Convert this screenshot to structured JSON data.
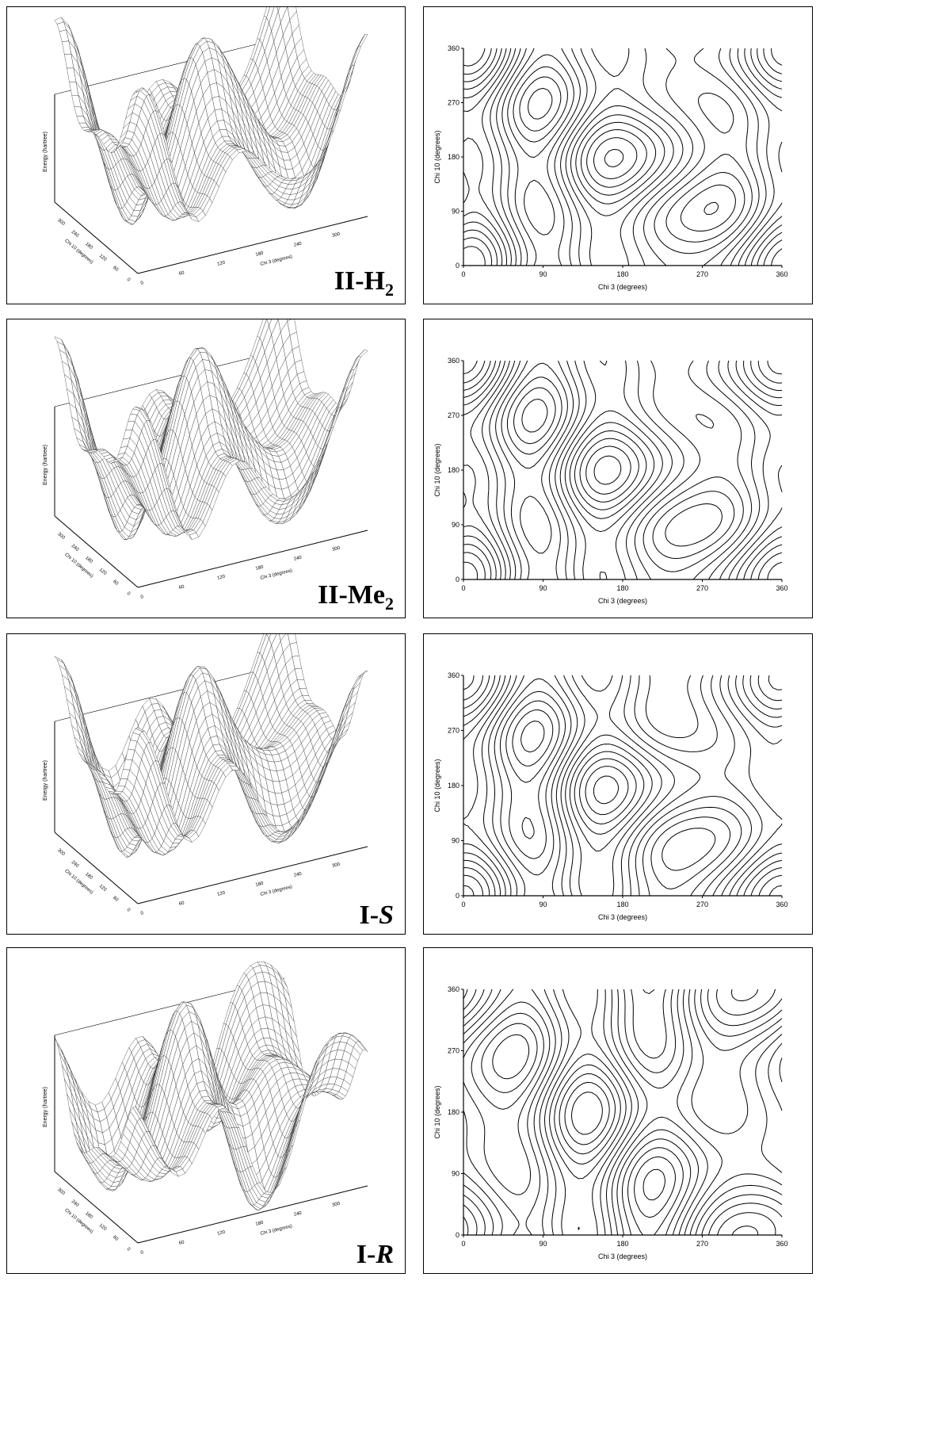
{
  "rows": [
    {
      "compound": {
        "base": "II-H",
        "sub": "2",
        "italic": ""
      },
      "surface": {
        "zlabel": "Energy (hartree)",
        "xlabel": "Chi 3 (degrees)",
        "ylabel": "Chi 10 (degrees)",
        "x_ticks": [
          "0",
          "60",
          "120",
          "180",
          "240",
          "300"
        ],
        "y_ticks": [
          "0",
          "60",
          "120",
          "180",
          "240",
          "300"
        ]
      },
      "contour": {
        "xlabel": "Chi 3 (degrees)",
        "ylabel": "Chi 10 (degrees)",
        "x_ticks": [
          "0",
          "90",
          "180",
          "270",
          "360"
        ],
        "y_ticks": [
          "0",
          "90",
          "180",
          "270",
          "360"
        ],
        "xlim": [
          0,
          360
        ],
        "ylim": [
          0,
          360
        ]
      }
    },
    {
      "compound": {
        "base": "II-Me",
        "sub": "2",
        "italic": ""
      },
      "surface": {
        "zlabel": "Energy (hartree)",
        "xlabel": "Chi 3 (degrees)",
        "ylabel": "Chi 10 (degrees)",
        "x_ticks": [
          "0",
          "60",
          "120",
          "180",
          "240",
          "300"
        ],
        "y_ticks": [
          "0",
          "60",
          "120",
          "180",
          "240",
          "300"
        ]
      },
      "contour": {
        "xlabel": "Chi 3 (degrees)",
        "ylabel": "Chi 10 (degrees)",
        "x_ticks": [
          "0",
          "90",
          "180",
          "270",
          "360"
        ],
        "y_ticks": [
          "0",
          "90",
          "180",
          "270",
          "360"
        ],
        "xlim": [
          0,
          360
        ],
        "ylim": [
          0,
          360
        ]
      }
    },
    {
      "compound": {
        "base": "I-",
        "sub": "",
        "italic": "S"
      },
      "surface": {
        "zlabel": "Energy (hartree)",
        "xlabel": "Chi 3 (degrees)",
        "ylabel": "Chi 10 (degrees)",
        "x_ticks": [
          "0",
          "60",
          "120",
          "180",
          "240",
          "300"
        ],
        "y_ticks": [
          "0",
          "60",
          "120",
          "180",
          "240",
          "300"
        ]
      },
      "contour": {
        "xlabel": "Chi 3 (degrees)",
        "ylabel": "Chi 10 (degrees)",
        "x_ticks": [
          "0",
          "90",
          "180",
          "270",
          "360"
        ],
        "y_ticks": [
          "0",
          "90",
          "180",
          "270",
          "360"
        ],
        "xlim": [
          0,
          360
        ],
        "ylim": [
          0,
          360
        ]
      }
    },
    {
      "compound": {
        "base": "I-",
        "sub": "",
        "italic": "R"
      },
      "surface": {
        "zlabel": "Energy (hartree)",
        "xlabel": "Chi 3 (degrees)",
        "ylabel": "Chi 10 (degrees)",
        "x_ticks": [
          "0",
          "60",
          "120",
          "180",
          "240",
          "300"
        ],
        "y_ticks": [
          "0",
          "60",
          "120",
          "180",
          "240",
          "300"
        ]
      },
      "contour": {
        "xlabel": "Chi 3 (degrees)",
        "ylabel": "Chi 10 (degrees)",
        "x_ticks": [
          "0",
          "90",
          "180",
          "270",
          "360"
        ],
        "y_ticks": [
          "0",
          "90",
          "180",
          "270",
          "360"
        ],
        "xlim": [
          0,
          360
        ],
        "ylim": [
          0,
          360
        ]
      }
    }
  ],
  "chart_data": [
    {
      "type": "surface",
      "compound": "II-H2",
      "xlabel": "Chi 3 (degrees)",
      "ylabel": "Chi 10 (degrees)",
      "zlabel": "Energy (hartree)",
      "xlim": [
        0,
        360
      ],
      "ylim": [
        0,
        360
      ]
    },
    {
      "type": "contour",
      "compound": "II-H2",
      "xlabel": "Chi 3 (degrees)",
      "ylabel": "Chi 10 (degrees)",
      "xlim": [
        0,
        360
      ],
      "ylim": [
        0,
        360
      ],
      "x_ticks": [
        0,
        90,
        180,
        270,
        360
      ],
      "y_ticks": [
        0,
        90,
        180,
        270,
        360
      ]
    },
    {
      "type": "surface",
      "compound": "II-Me2",
      "xlabel": "Chi 3 (degrees)",
      "ylabel": "Chi 10 (degrees)",
      "zlabel": "Energy (hartree)",
      "xlim": [
        0,
        360
      ],
      "ylim": [
        0,
        360
      ]
    },
    {
      "type": "contour",
      "compound": "II-Me2",
      "xlabel": "Chi 3 (degrees)",
      "ylabel": "Chi 10 (degrees)",
      "xlim": [
        0,
        360
      ],
      "ylim": [
        0,
        360
      ],
      "x_ticks": [
        0,
        90,
        180,
        270,
        360
      ],
      "y_ticks": [
        0,
        90,
        180,
        270,
        360
      ]
    },
    {
      "type": "surface",
      "compound": "I-S",
      "xlabel": "Chi 3 (degrees)",
      "ylabel": "Chi 10 (degrees)",
      "zlabel": "Energy (hartree)",
      "xlim": [
        0,
        360
      ],
      "ylim": [
        0,
        360
      ]
    },
    {
      "type": "contour",
      "compound": "I-S",
      "xlabel": "Chi 3 (degrees)",
      "ylabel": "Chi 10 (degrees)",
      "xlim": [
        0,
        360
      ],
      "ylim": [
        0,
        360
      ],
      "x_ticks": [
        0,
        90,
        180,
        270,
        360
      ],
      "y_ticks": [
        0,
        90,
        180,
        270,
        360
      ]
    },
    {
      "type": "surface",
      "compound": "I-R",
      "xlabel": "Chi 3 (degrees)",
      "ylabel": "Chi 10 (degrees)",
      "zlabel": "Energy (hartree)",
      "xlim": [
        0,
        360
      ],
      "ylim": [
        0,
        360
      ]
    },
    {
      "type": "contour",
      "compound": "I-R",
      "xlabel": "Chi 3 (degrees)",
      "ylabel": "Chi 10 (degrees)",
      "xlim": [
        0,
        360
      ],
      "ylim": [
        0,
        360
      ],
      "x_ticks": [
        0,
        90,
        180,
        270,
        360
      ],
      "y_ticks": [
        0,
        90,
        180,
        270,
        360
      ]
    }
  ]
}
